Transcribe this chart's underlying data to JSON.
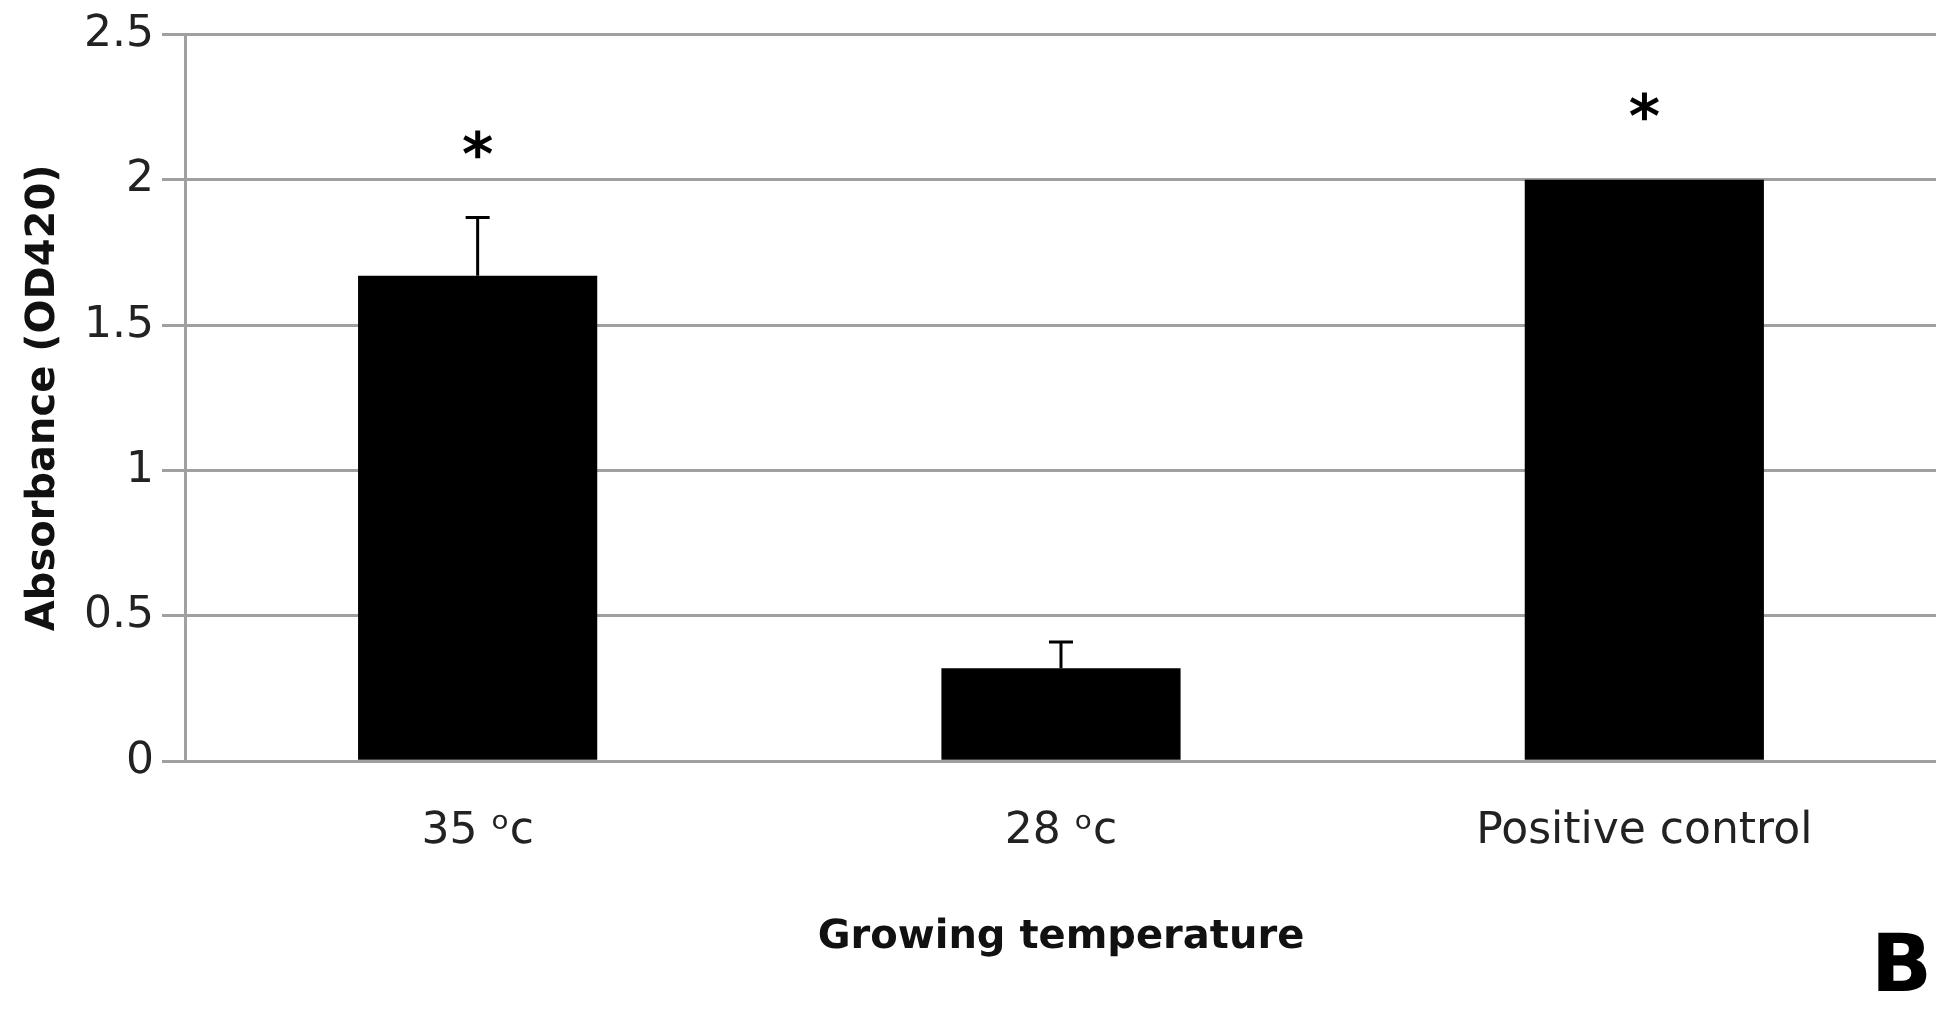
{
  "chart_data": {
    "type": "bar",
    "xlabel": "Growing temperature",
    "ylabel": "Absorbance (OD420)",
    "categories": [
      "35 ᵒc",
      "28 ᵒc",
      "Positive control"
    ],
    "values": [
      1.67,
      0.32,
      2.0
    ],
    "color": "#000000",
    "errors": [
      [
        1.67,
        1.87
      ],
      [
        0.32,
        0.41
      ],
      null
    ],
    "ylim": [
      0,
      2.5
    ],
    "yticks": [
      0,
      0.5,
      1,
      1.5,
      2,
      2.5
    ],
    "grid": "y",
    "legend": false,
    "annotations": [
      {
        "text": "*",
        "x": "35 ᵒc",
        "y": 1.87
      },
      {
        "text": "*",
        "x": "Positive control",
        "y": 2.0
      },
      "B"
    ]
  }
}
